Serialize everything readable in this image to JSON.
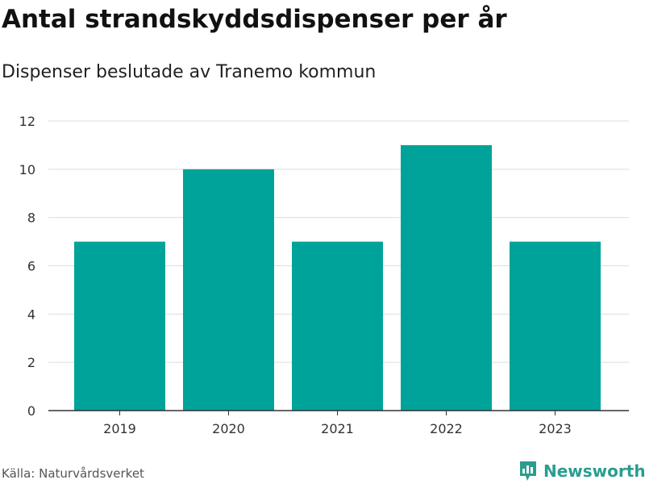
{
  "header": {
    "title": "Antal strandskyddsdispenser per år",
    "subtitle": "Dispenser beslutade av Tranemo kommun"
  },
  "footer": {
    "source": "Källa: Naturvårdsverket",
    "brand": "Newsworthy",
    "brand_icon": "newsworthy-logo-icon"
  },
  "colors": {
    "bar": "#00a39a",
    "grid": "#dddddd",
    "axis": "#333333",
    "brand": "#2a9d8f"
  },
  "chart_data": {
    "type": "bar",
    "categories": [
      "2019",
      "2020",
      "2021",
      "2022",
      "2023"
    ],
    "values": [
      7,
      10,
      7,
      11,
      7
    ],
    "title": "Antal strandskyddsdispenser per år",
    "subtitle": "Dispenser beslutade av Tranemo kommun",
    "xlabel": "",
    "ylabel": "",
    "ylim": [
      0,
      12
    ],
    "yticks": [
      0,
      2,
      4,
      6,
      8,
      10,
      12
    ],
    "grid": true,
    "legend": "none"
  }
}
